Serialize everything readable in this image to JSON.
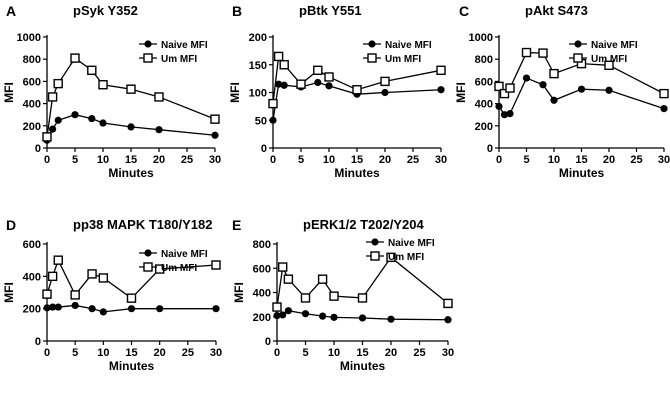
{
  "chart_data": [
    {
      "panel_letter": "A",
      "type": "line",
      "title": "pSyk Y352",
      "xlabel": "Minutes",
      "ylabel": "MFI",
      "xlim": [
        0,
        30
      ],
      "ylim": [
        0,
        1000
      ],
      "xticks": [
        0,
        5,
        10,
        15,
        20,
        25,
        30
      ],
      "yticks": [
        0,
        200,
        400,
        600,
        800,
        1000
      ],
      "series": [
        {
          "name": "Naive MFI",
          "marker": "filled-circle",
          "x": [
            0,
            1,
            2,
            5,
            8,
            10,
            15,
            20,
            30
          ],
          "values": [
            70,
            170,
            250,
            300,
            265,
            225,
            190,
            165,
            115
          ]
        },
        {
          "name": "Um MFI",
          "marker": "open-square",
          "x": [
            0,
            1,
            2,
            5,
            8,
            10,
            15,
            20,
            30
          ],
          "values": [
            100,
            460,
            580,
            810,
            700,
            570,
            530,
            460,
            260
          ]
        }
      ]
    },
    {
      "panel_letter": "B",
      "type": "line",
      "title": "pBtk Y551",
      "xlabel": "Minutes",
      "ylabel": "MFI",
      "xlim": [
        0,
        30
      ],
      "ylim": [
        0,
        200
      ],
      "xticks": [
        0,
        5,
        10,
        15,
        20,
        25,
        30
      ],
      "yticks": [
        0,
        50,
        100,
        150,
        200
      ],
      "series": [
        {
          "name": "Naive MFI",
          "marker": "filled-circle",
          "x": [
            0,
            1,
            2,
            5,
            8,
            10,
            15,
            20,
            30
          ],
          "values": [
            50,
            115,
            113,
            110,
            118,
            112,
            97,
            100,
            105
          ]
        },
        {
          "name": "Um MFI",
          "marker": "open-square",
          "x": [
            0,
            1,
            2,
            5,
            8,
            10,
            15,
            20,
            30
          ],
          "values": [
            80,
            165,
            150,
            115,
            140,
            128,
            105,
            120,
            140
          ]
        }
      ]
    },
    {
      "panel_letter": "C",
      "type": "line",
      "title": "pAkt S473",
      "xlabel": "Minutes",
      "ylabel": "MFI",
      "xlim": [
        0,
        30
      ],
      "ylim": [
        0,
        1000
      ],
      "xticks": [
        0,
        5,
        10,
        15,
        20,
        25,
        30
      ],
      "yticks": [
        0,
        200,
        400,
        600,
        800,
        1000
      ],
      "series": [
        {
          "name": "Naive MFI",
          "marker": "filled-circle",
          "x": [
            0,
            1,
            2,
            5,
            8,
            10,
            15,
            20,
            30
          ],
          "values": [
            375,
            300,
            310,
            630,
            570,
            430,
            530,
            520,
            355
          ]
        },
        {
          "name": "Um MFI",
          "marker": "open-square",
          "x": [
            0,
            1,
            2,
            5,
            8,
            10,
            15,
            20,
            30
          ],
          "values": [
            555,
            490,
            540,
            860,
            855,
            670,
            760,
            745,
            490
          ]
        }
      ]
    },
    {
      "panel_letter": "D",
      "type": "line",
      "title": "pp38 MAPK T180/Y182",
      "xlabel": "Minutes",
      "ylabel": "MFI",
      "xlim": [
        0,
        30
      ],
      "ylim": [
        0,
        600
      ],
      "xticks": [
        0,
        5,
        10,
        15,
        20,
        25,
        30
      ],
      "yticks": [
        0,
        200,
        400,
        600
      ],
      "series": [
        {
          "name": "Naive MFI",
          "marker": "filled-circle",
          "x": [
            0,
            1,
            2,
            5,
            8,
            10,
            15,
            20,
            30
          ],
          "values": [
            205,
            210,
            210,
            220,
            200,
            180,
            200,
            200,
            200
          ]
        },
        {
          "name": "Um MFI",
          "marker": "open-square",
          "x": [
            0,
            1,
            2,
            5,
            8,
            10,
            15,
            20,
            30
          ],
          "values": [
            290,
            400,
            500,
            285,
            415,
            390,
            265,
            445,
            470
          ]
        }
      ]
    },
    {
      "panel_letter": "E",
      "type": "line",
      "title": "pERK1/2 T202/Y204",
      "xlabel": "Minutes",
      "ylabel": "MFI",
      "xlim": [
        0,
        30
      ],
      "ylim": [
        0,
        800
      ],
      "xticks": [
        0,
        5,
        10,
        15,
        20,
        25,
        30
      ],
      "yticks": [
        0,
        200,
        400,
        600,
        800
      ],
      "series": [
        {
          "name": "Naive MFI",
          "marker": "filled-circle",
          "x": [
            0,
            1,
            2,
            5,
            8,
            10,
            15,
            20,
            30
          ],
          "values": [
            210,
            215,
            250,
            225,
            205,
            195,
            190,
            180,
            175
          ]
        },
        {
          "name": "Um MFI",
          "marker": "open-square",
          "x": [
            0,
            1,
            2,
            5,
            8,
            10,
            15,
            20,
            30
          ],
          "values": [
            280,
            610,
            510,
            355,
            510,
            370,
            355,
            690,
            310
          ]
        }
      ]
    }
  ]
}
